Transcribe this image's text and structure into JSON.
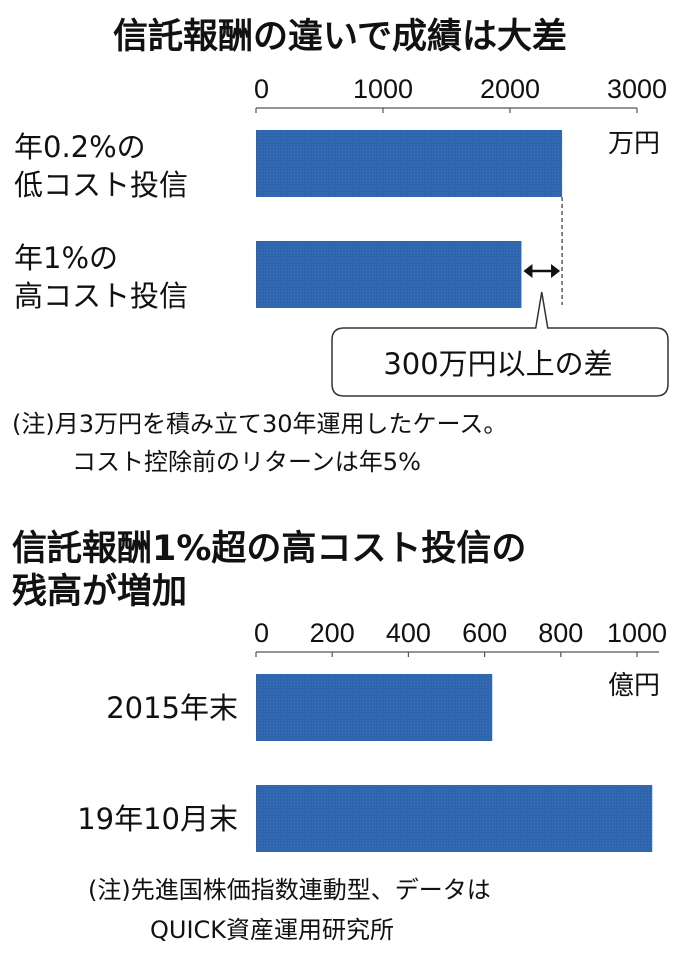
{
  "chart_data": [
    {
      "type": "bar",
      "orientation": "horizontal",
      "title": "信託報酬の違いで成績は大差",
      "unit": "万円",
      "categories": [
        "年0.2%の\n低コスト投信",
        "年1%の\n高コスト投信"
      ],
      "category_lines": [
        [
          "年0.2%の",
          "低コスト投信"
        ],
        [
          "年1%の",
          "高コスト投信"
        ]
      ],
      "values": [
        2410,
        2090
      ],
      "xlim": [
        0,
        3000
      ],
      "ticks": [
        "0",
        "1000",
        "2000",
        "3000"
      ],
      "tick_values": [
        0,
        1000,
        2000,
        3000
      ],
      "annotation": "300万円以上の差",
      "notes": [
        "(注)月3万円を積み立て30年運用したケース。",
        "コスト控除前のリターンは年5%"
      ],
      "bar_color": "#2f65ad",
      "grid": false
    },
    {
      "type": "bar",
      "orientation": "horizontal",
      "title_lines": [
        "信託報酬1%超の高コスト投信の",
        "残高が増加"
      ],
      "unit": "億円",
      "categories": [
        "2015年末",
        "19年10月末"
      ],
      "values": [
        620,
        1040
      ],
      "xlim": [
        0,
        1000
      ],
      "ticks": [
        "0",
        "200",
        "400",
        "600",
        "800",
        "1000"
      ],
      "tick_values": [
        0,
        200,
        400,
        600,
        800,
        1000
      ],
      "notes": [
        "(注)先進国株価指数連動型、データは",
        "QUICK資産運用研究所"
      ],
      "bar_color": "#2f65ad",
      "grid": false
    }
  ]
}
